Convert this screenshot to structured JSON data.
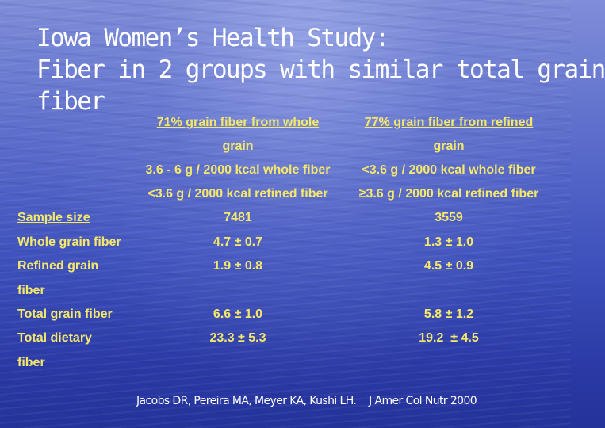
{
  "title": {
    "line1": "Iowa Women’s Health Study:",
    "line2": "Fiber in 2 groups with similar total grain",
    "line3": "fiber"
  },
  "columns": [
    {
      "header_line1": "71% grain fiber from whole",
      "header_line2": "grain",
      "criterion1": "3.6 - 6 g / 2000 kcal whole fiber",
      "criterion2": "<3.6 g / 2000 kcal refined fiber"
    },
    {
      "header_line1": "77% grain fiber from refined",
      "header_line2": "grain",
      "criterion1": "<3.6 g / 2000 kcal whole fiber",
      "criterion2": "≥3.6 g / 2000 kcal refined fiber"
    }
  ],
  "rows": [
    {
      "label": "Sample size",
      "values": [
        "7481",
        "3559"
      ]
    },
    {
      "label": "Whole grain fiber",
      "values": [
        "4.7 ± 0.7",
        "1.3 ± 1.0"
      ]
    },
    {
      "label_line1": "Refined grain",
      "label_line2": "fiber",
      "values": [
        "1.9 ± 0.8",
        "4.5 ± 0.9"
      ]
    },
    {
      "label": "Total grain fiber",
      "values": [
        "6.6 ± 1.0",
        "5.8 ± 1.2"
      ]
    },
    {
      "label_line1": "Total dietary",
      "label_line2": "fiber",
      "values": [
        "23.3 ± 5.3",
        "19.2  ± 4.5"
      ]
    }
  ],
  "citation": {
    "authors": "Jacobs DR, Pereira MA, Meyer KA, Kushi LH.",
    "journal": "J Amer Col Nutr 2000"
  },
  "colors": {
    "title": "#ffffff",
    "table_text": "#f4e86a",
    "background": "#3f52bd"
  }
}
